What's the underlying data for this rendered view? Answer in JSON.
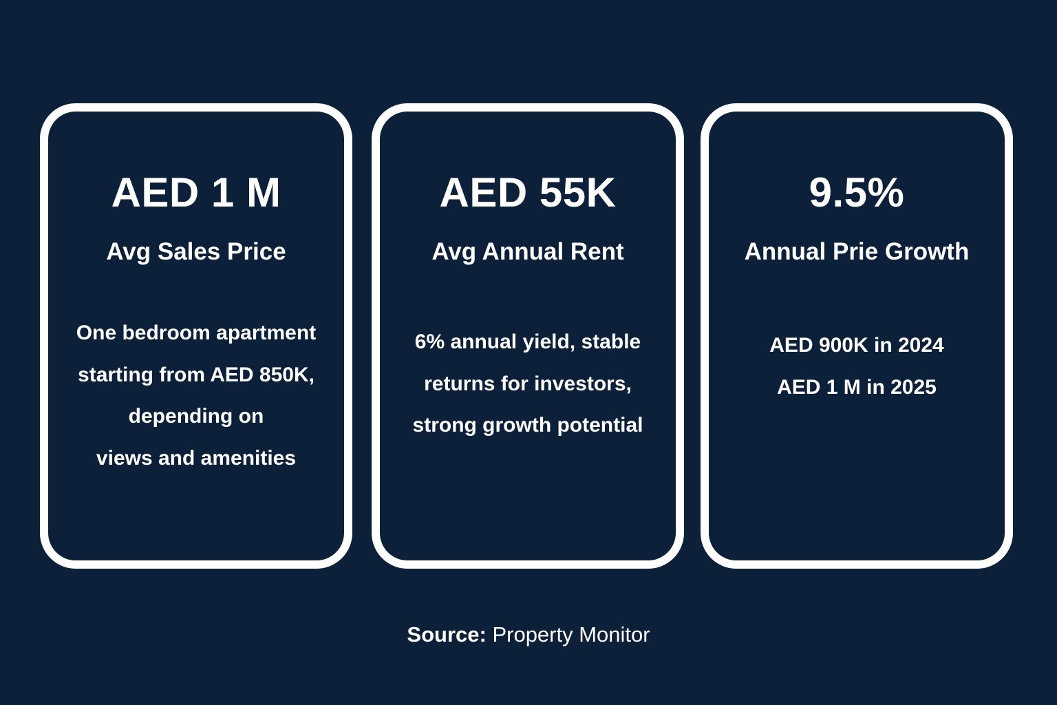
{
  "colors": {
    "background": "#0c2139",
    "text": "#ffffff",
    "card_border": "#ffffff"
  },
  "cards": [
    {
      "metric": "AED 1 M",
      "label": "Avg Sales Price",
      "lines": [
        "One bedroom apartment",
        "starting from AED 850K,",
        "depending on",
        "views and amenities"
      ]
    },
    {
      "metric": "AED 55K",
      "label": "Avg Annual Rent",
      "lines": [
        "6% annual yield, stable",
        "returns for investors,",
        "strong growth potential"
      ]
    },
    {
      "metric": "9.5%",
      "label": "Annual Prie Growth",
      "lines": [
        "AED 900K in 2024",
        "AED 1 M in 2025"
      ]
    }
  ],
  "source": {
    "label": "Source:",
    "value": "Property Monitor"
  }
}
